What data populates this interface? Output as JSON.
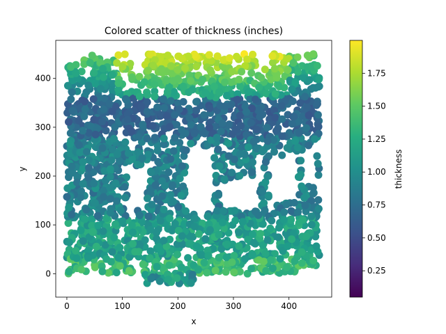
{
  "chart_data": {
    "type": "scatter",
    "title": "Colored scatter of thickness (inches)",
    "xlabel": "x",
    "ylabel": "y",
    "xlim": [
      -20,
      477
    ],
    "ylim": [
      -48,
      478
    ],
    "xticks": [
      "0",
      "100",
      "200",
      "300",
      "400"
    ],
    "xtick_values": [
      0,
      100,
      200,
      300,
      400
    ],
    "yticks": [
      "0",
      "100",
      "200",
      "300",
      "400"
    ],
    "ytick_values": [
      0,
      100,
      200,
      300,
      400
    ],
    "colorbar": {
      "label": "thickness",
      "range": [
        0.05,
        2.0
      ],
      "ticks": [
        "0.25",
        "0.50",
        "0.75",
        "1.00",
        "1.25",
        "1.50",
        "1.75"
      ],
      "tick_values": [
        0.25,
        0.5,
        0.75,
        1.0,
        1.25,
        1.5,
        1.75
      ],
      "colormap": "viridis"
    },
    "grid": false,
    "point_color_by": "thickness",
    "data_regions": [
      {
        "x": [
          0,
          455
        ],
        "y": [
          0,
          115
        ],
        "thickness": [
          0.8,
          1.6
        ]
      },
      {
        "x": [
          0,
          455
        ],
        "y": [
          115,
          280
        ],
        "thickness": [
          0.6,
          1.2
        ]
      },
      {
        "x": [
          0,
          455
        ],
        "y": [
          280,
          360
        ],
        "thickness": [
          0.5,
          0.9
        ]
      },
      {
        "x": [
          0,
          455
        ],
        "y": [
          360,
          450
        ],
        "thickness": [
          1.0,
          1.95
        ]
      }
    ],
    "gaps": [
      {
        "x": [
          110,
          145
        ],
        "y": [
          130,
          220
        ]
      },
      {
        "x": [
          215,
          265
        ],
        "y": [
          125,
          260
        ]
      },
      {
        "x": [
          280,
          345
        ],
        "y": [
          130,
          190
        ]
      },
      {
        "x": [
          335,
          355
        ],
        "y": [
          190,
          240
        ]
      },
      {
        "x": [
          365,
          415
        ],
        "y": [
          150,
          240
        ]
      },
      {
        "x": [
          425,
          450
        ],
        "y": [
          180,
          260
        ]
      },
      {
        "x": [
          340,
          370
        ],
        "y": [
          420,
          450
        ]
      },
      {
        "x": [
          115,
          140
        ],
        "y": [
          410,
          450
        ]
      }
    ]
  }
}
